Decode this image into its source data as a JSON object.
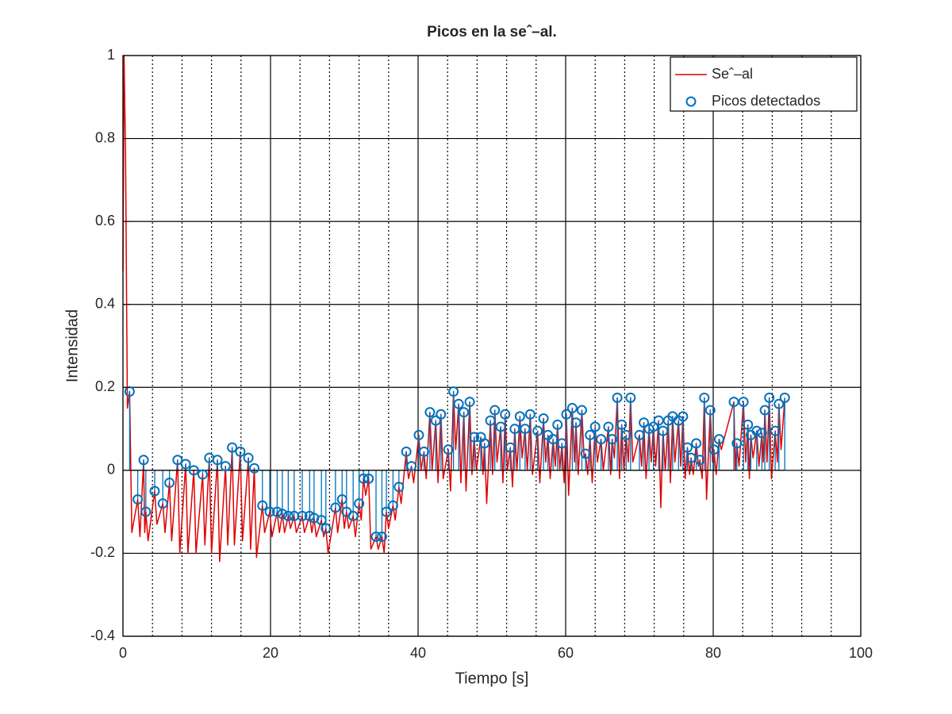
{
  "chart_data": {
    "type": "line",
    "title": "Picos en la seˆ–al.",
    "xlabel": "Tiempo [s]",
    "ylabel": "Intensidad",
    "xlim": [
      0,
      100
    ],
    "ylim": [
      -0.4,
      1
    ],
    "xticks": [
      0,
      20,
      40,
      60,
      80,
      100
    ],
    "yticks": [
      -0.4,
      -0.2,
      0,
      0.2,
      0.4,
      0.6,
      0.8,
      1
    ],
    "xminor_grid": [
      4,
      8,
      12,
      16,
      24,
      28,
      32,
      36,
      44,
      48,
      52,
      56,
      64,
      68,
      72,
      76,
      84,
      88,
      92,
      96
    ],
    "grid": true,
    "legend": "northeast",
    "series": [
      {
        "name": "Seˆ–al",
        "type": "line",
        "color": "#e00000",
        "x": [
          0,
          0.15,
          0.35,
          0.6,
          0.9,
          1.2,
          2.0,
          2.3,
          2.8,
          2.95,
          3.1,
          3.4,
          4.3,
          4.6,
          5.4,
          5.7,
          6.3,
          6.6,
          7.4,
          7.7,
          8.5,
          8.8,
          9.6,
          9.9,
          10.8,
          11.1,
          11.7,
          12.0,
          12.8,
          13.1,
          13.9,
          14.2,
          14.8,
          15.1,
          15.9,
          16.2,
          17.0,
          17.3,
          17.8,
          18.1,
          18.9,
          19.2,
          19.9,
          20.2,
          20.9,
          21.2,
          21.6,
          21.9,
          22.4,
          22.7,
          23.2,
          23.5,
          24.3,
          24.6,
          25.3,
          25.6,
          25.9,
          26.2,
          26.9,
          27.2,
          27.5,
          27.8,
          28.8,
          29.1,
          29.7,
          30.0,
          30.3,
          30.6,
          31.2,
          31.5,
          32.0,
          32.3,
          32.6,
          32.9,
          33.3,
          33.6,
          34.3,
          34.6,
          35.1,
          35.4,
          35.7,
          36.0,
          36.6,
          36.9,
          37.4,
          37.7,
          38.4,
          38.7,
          39.1,
          39.4,
          40.1,
          40.4,
          40.8,
          41.1,
          41.6,
          41.9,
          42.4,
          42.7,
          43.1,
          43.4,
          44.1,
          44.4,
          44.8,
          45.1,
          45.5,
          45.8,
          46.2,
          46.5,
          47.0,
          47.3,
          47.6,
          47.9,
          48.5,
          48.8,
          49.0,
          49.3,
          49.8,
          50.1,
          50.4,
          50.7,
          51.2,
          51.5,
          51.8,
          52.1,
          52.5,
          52.8,
          53.1,
          53.4,
          53.8,
          54.1,
          54.5,
          54.8,
          55.2,
          55.5,
          56.2,
          56.5,
          57.0,
          57.3,
          57.6,
          57.9,
          58.3,
          58.6,
          58.9,
          59.2,
          59.5,
          59.8,
          60.1,
          60.4,
          60.9,
          61.2,
          61.4,
          61.7,
          62.2,
          62.5,
          62.7,
          63.0,
          63.3,
          63.6,
          64.0,
          64.3,
          64.8,
          65.1,
          65.8,
          66.1,
          66.3,
          66.6,
          67.0,
          67.3,
          67.6,
          67.9,
          68.2,
          68.5,
          68.8,
          69.1,
          70.0,
          70.3,
          70.6,
          70.9,
          71.3,
          71.6,
          71.9,
          72.2,
          72.6,
          72.9,
          73.2,
          73.5,
          73.9,
          74.2,
          74.5,
          74.8,
          75.3,
          75.6,
          75.9,
          76.2,
          76.5,
          76.8,
          77.0,
          77.3,
          77.7,
          78.0,
          78.2,
          78.5,
          78.8,
          79.1,
          79.6,
          79.9,
          80.1,
          80.4,
          80.8,
          81.1,
          82.8,
          83.0,
          83.2,
          83.5,
          84.1,
          84.4,
          84.7,
          84.9,
          85.1,
          85.4,
          85.9,
          86.2,
          86.6,
          86.8,
          87.0,
          87.3,
          87.6,
          87.9,
          88.4,
          88.7,
          88.9,
          89.2,
          89.7
        ],
        "values": [
          0.48,
          1.0,
          0.76,
          0.15,
          0.19,
          -0.15,
          -0.07,
          -0.16,
          0.025,
          -0.15,
          -0.1,
          -0.17,
          -0.05,
          -0.13,
          -0.08,
          -0.15,
          -0.03,
          -0.17,
          0.025,
          -0.2,
          0.015,
          -0.2,
          0.0,
          -0.2,
          -0.01,
          -0.18,
          0.03,
          -0.2,
          0.025,
          -0.22,
          0.01,
          -0.18,
          0.055,
          -0.18,
          0.045,
          -0.17,
          0.03,
          -0.19,
          0.005,
          -0.21,
          -0.085,
          -0.15,
          -0.1,
          -0.16,
          -0.1,
          -0.15,
          -0.105,
          -0.15,
          -0.11,
          -0.14,
          -0.11,
          -0.15,
          -0.11,
          -0.15,
          -0.11,
          -0.15,
          -0.115,
          -0.16,
          -0.12,
          -0.16,
          -0.14,
          -0.2,
          -0.09,
          -0.15,
          -0.07,
          -0.14,
          -0.1,
          -0.14,
          -0.11,
          -0.16,
          -0.08,
          -0.12,
          -0.02,
          -0.06,
          -0.02,
          -0.19,
          -0.16,
          -0.19,
          -0.16,
          -0.2,
          -0.1,
          -0.14,
          -0.085,
          -0.12,
          -0.04,
          -0.08,
          0.045,
          -0.02,
          0.01,
          -0.03,
          0.085,
          0.0,
          0.045,
          -0.02,
          0.14,
          0.0,
          0.12,
          -0.03,
          0.135,
          -0.02,
          0.05,
          -0.05,
          0.19,
          0.05,
          0.16,
          -0.03,
          0.14,
          -0.05,
          0.165,
          -0.01,
          0.08,
          0.0,
          0.08,
          -0.01,
          0.065,
          -0.08,
          0.12,
          -0.01,
          0.145,
          0.02,
          0.105,
          -0.03,
          0.135,
          0.0,
          0.055,
          -0.04,
          0.1,
          0.0,
          0.13,
          0.03,
          0.1,
          0.0,
          0.135,
          -0.01,
          0.095,
          -0.03,
          0.125,
          0.02,
          0.085,
          -0.02,
          0.075,
          0.01,
          0.11,
          0.0,
          0.065,
          -0.03,
          0.135,
          -0.06,
          0.15,
          0.02,
          0.115,
          -0.01,
          0.145,
          0.03,
          0.04,
          -0.01,
          0.085,
          -0.03,
          0.105,
          0.02,
          0.075,
          0.0,
          0.105,
          -0.01,
          0.075,
          0.03,
          0.175,
          -0.02,
          0.11,
          0.0,
          0.085,
          0.02,
          0.175,
          0.02,
          0.085,
          0.01,
          0.115,
          -0.02,
          0.1,
          0.02,
          0.105,
          0.01,
          0.12,
          -0.09,
          0.095,
          0.0,
          0.12,
          -0.03,
          0.13,
          0.02,
          0.12,
          0.01,
          0.13,
          -0.02,
          0.055,
          -0.01,
          0.03,
          -0.01,
          0.065,
          0.01,
          0.025,
          -0.02,
          0.175,
          -0.07,
          0.145,
          0.02,
          0.05,
          -0.01,
          0.075,
          0.05,
          0.165,
          0.0,
          0.065,
          0.01,
          0.165,
          0.02,
          0.11,
          -0.02,
          0.085,
          0.03,
          0.095,
          0.01,
          0.09,
          0.02,
          0.145,
          0.02,
          0.175,
          -0.02,
          0.095,
          0.02,
          0.16,
          0.05,
          0.175
        ]
      },
      {
        "name": "Picos detectados",
        "type": "stem",
        "color": "#0072bd",
        "x": [
          0.9,
          2.0,
          2.8,
          3.1,
          4.3,
          5.4,
          6.3,
          7.4,
          8.5,
          9.6,
          10.8,
          11.7,
          12.8,
          13.9,
          14.8,
          15.9,
          17.0,
          17.8,
          18.9,
          19.9,
          20.9,
          21.6,
          22.4,
          23.2,
          24.3,
          25.3,
          25.9,
          26.9,
          27.5,
          28.8,
          29.7,
          30.3,
          31.2,
          32.0,
          32.6,
          33.3,
          34.3,
          35.1,
          35.7,
          36.6,
          37.4,
          38.4,
          39.1,
          40.1,
          40.8,
          41.6,
          42.4,
          43.1,
          44.1,
          44.8,
          45.5,
          46.2,
          47.0,
          47.6,
          48.5,
          49.0,
          49.8,
          50.4,
          51.2,
          51.8,
          52.5,
          53.1,
          53.8,
          54.5,
          55.2,
          56.2,
          57.0,
          57.6,
          58.3,
          58.9,
          59.5,
          60.1,
          60.9,
          61.4,
          62.2,
          62.7,
          63.3,
          64.0,
          64.8,
          65.8,
          66.3,
          67.0,
          67.6,
          68.2,
          68.8,
          70.0,
          70.6,
          71.3,
          71.9,
          72.6,
          73.2,
          73.9,
          74.5,
          75.3,
          75.9,
          76.5,
          77.0,
          77.7,
          78.2,
          78.8,
          79.6,
          80.1,
          80.8,
          82.8,
          83.2,
          84.1,
          84.7,
          85.1,
          85.9,
          86.6,
          87.0,
          87.6,
          88.4,
          88.9,
          89.7
        ],
        "values": [
          0.19,
          -0.07,
          0.025,
          -0.1,
          -0.05,
          -0.08,
          -0.03,
          0.025,
          0.015,
          0.0,
          -0.01,
          0.03,
          0.025,
          0.01,
          0.055,
          0.045,
          0.03,
          0.005,
          -0.085,
          -0.1,
          -0.1,
          -0.105,
          -0.11,
          -0.11,
          -0.11,
          -0.11,
          -0.115,
          -0.12,
          -0.14,
          -0.09,
          -0.07,
          -0.1,
          -0.11,
          -0.08,
          -0.02,
          -0.02,
          -0.16,
          -0.16,
          -0.1,
          -0.085,
          -0.04,
          0.045,
          0.01,
          0.085,
          0.045,
          0.14,
          0.12,
          0.135,
          0.05,
          0.19,
          0.16,
          0.14,
          0.165,
          0.08,
          0.08,
          0.065,
          0.12,
          0.145,
          0.105,
          0.135,
          0.055,
          0.1,
          0.13,
          0.1,
          0.135,
          0.095,
          0.125,
          0.085,
          0.075,
          0.11,
          0.065,
          0.135,
          0.15,
          0.115,
          0.145,
          0.04,
          0.085,
          0.105,
          0.075,
          0.105,
          0.075,
          0.175,
          0.11,
          0.085,
          0.175,
          0.085,
          0.115,
          0.1,
          0.105,
          0.12,
          0.095,
          0.12,
          0.13,
          0.12,
          0.13,
          0.055,
          0.03,
          0.065,
          0.025,
          0.175,
          0.145,
          0.05,
          0.075,
          0.165,
          0.065,
          0.165,
          0.11,
          0.085,
          0.095,
          0.09,
          0.145,
          0.175,
          0.095,
          0.16,
          0.175
        ]
      }
    ]
  }
}
